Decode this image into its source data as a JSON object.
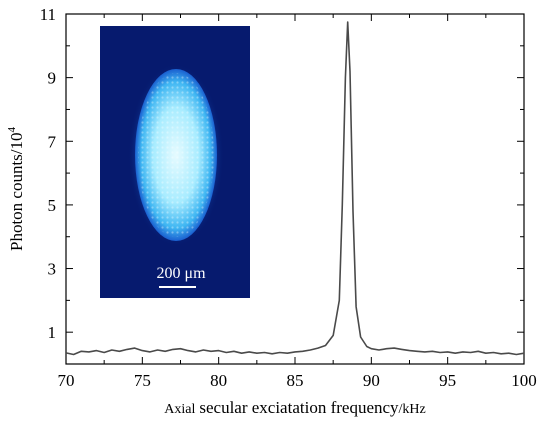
{
  "chart_data": {
    "type": "line",
    "xlabel_prefix": "Axial",
    "xlabel_main": "secular exciatation frequency",
    "xlabel_unit": "/kHz",
    "ylabel_main": "Photon counts/10",
    "ylabel_exp": "4",
    "xlim": [
      70,
      100
    ],
    "ylim": [
      0,
      11
    ],
    "x_ticks": [
      70,
      75,
      80,
      85,
      90,
      95,
      100
    ],
    "y_ticks": [
      1,
      3,
      5,
      7,
      9,
      11
    ],
    "grid": false,
    "series": [
      {
        "color": "#4a4a4a",
        "points": [
          [
            70.0,
            0.35
          ],
          [
            70.5,
            0.3
          ],
          [
            71.0,
            0.4
          ],
          [
            71.5,
            0.38
          ],
          [
            72.0,
            0.42
          ],
          [
            72.5,
            0.36
          ],
          [
            73.0,
            0.44
          ],
          [
            73.5,
            0.4
          ],
          [
            74.0,
            0.46
          ],
          [
            74.5,
            0.5
          ],
          [
            75.0,
            0.42
          ],
          [
            75.5,
            0.38
          ],
          [
            76.0,
            0.44
          ],
          [
            76.5,
            0.4
          ],
          [
            77.0,
            0.46
          ],
          [
            77.5,
            0.48
          ],
          [
            78.0,
            0.42
          ],
          [
            78.5,
            0.38
          ],
          [
            79.0,
            0.44
          ],
          [
            79.5,
            0.4
          ],
          [
            80.0,
            0.42
          ],
          [
            80.5,
            0.36
          ],
          [
            81.0,
            0.4
          ],
          [
            81.5,
            0.34
          ],
          [
            82.0,
            0.38
          ],
          [
            82.5,
            0.34
          ],
          [
            83.0,
            0.36
          ],
          [
            83.5,
            0.32
          ],
          [
            84.0,
            0.36
          ],
          [
            84.5,
            0.34
          ],
          [
            85.0,
            0.38
          ],
          [
            85.5,
            0.4
          ],
          [
            86.0,
            0.44
          ],
          [
            86.5,
            0.5
          ],
          [
            87.0,
            0.58
          ],
          [
            87.5,
            0.9
          ],
          [
            87.9,
            2.0
          ],
          [
            88.1,
            5.0
          ],
          [
            88.3,
            9.0
          ],
          [
            88.45,
            10.75
          ],
          [
            88.6,
            9.2
          ],
          [
            88.8,
            4.8
          ],
          [
            89.0,
            1.8
          ],
          [
            89.3,
            0.85
          ],
          [
            89.7,
            0.55
          ],
          [
            90.0,
            0.48
          ],
          [
            90.5,
            0.44
          ],
          [
            91.0,
            0.48
          ],
          [
            91.5,
            0.5
          ],
          [
            92.0,
            0.46
          ],
          [
            92.5,
            0.42
          ],
          [
            93.0,
            0.4
          ],
          [
            93.5,
            0.38
          ],
          [
            94.0,
            0.4
          ],
          [
            94.5,
            0.36
          ],
          [
            95.0,
            0.38
          ],
          [
            95.5,
            0.34
          ],
          [
            96.0,
            0.38
          ],
          [
            96.5,
            0.36
          ],
          [
            97.0,
            0.4
          ],
          [
            97.5,
            0.34
          ],
          [
            98.0,
            0.36
          ],
          [
            98.5,
            0.32
          ],
          [
            99.0,
            0.34
          ],
          [
            99.5,
            0.3
          ],
          [
            100.0,
            0.34
          ]
        ]
      }
    ],
    "inset": {
      "background_color": "#061a6e",
      "scale_bar_label": "200 μm"
    }
  }
}
